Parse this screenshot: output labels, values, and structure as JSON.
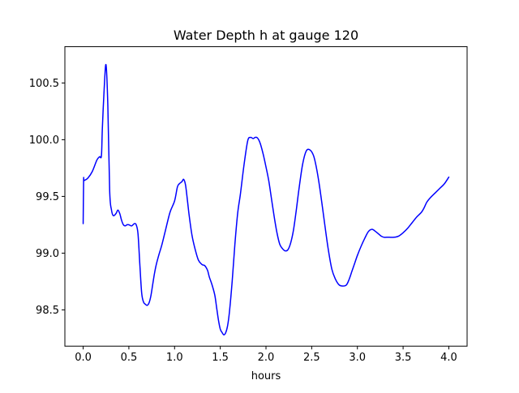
{
  "chart_data": {
    "type": "line",
    "title": "Water Depth h at gauge 120",
    "xlabel": "hours",
    "ylabel": "",
    "xlim": [
      -0.2,
      4.2
    ],
    "ylim": [
      98.18,
      100.82
    ],
    "xticks": [
      0.0,
      0.5,
      1.0,
      1.5,
      2.0,
      2.5,
      3.0,
      3.5,
      4.0
    ],
    "xtick_labels": [
      "0.0",
      "0.5",
      "1.0",
      "1.5",
      "2.0",
      "2.5",
      "3.0",
      "3.5",
      "4.0"
    ],
    "yticks": [
      98.5,
      99.0,
      99.5,
      100.0,
      100.5
    ],
    "ytick_labels": [
      "98.5",
      "99.0",
      "99.5",
      "100.0",
      "100.5"
    ],
    "grid": false,
    "legend": "none",
    "series": [
      {
        "color": "#0000ff",
        "x": [
          0.0,
          0.005,
          0.01,
          0.05,
          0.1,
          0.15,
          0.18,
          0.2,
          0.21,
          0.23,
          0.25,
          0.27,
          0.29,
          0.31,
          0.33,
          0.36,
          0.38,
          0.4,
          0.42,
          0.44,
          0.46,
          0.48,
          0.5,
          0.53,
          0.56,
          0.58,
          0.6,
          0.62,
          0.64,
          0.66,
          0.68,
          0.7,
          0.72,
          0.74,
          0.76,
          0.78,
          0.8,
          0.83,
          0.86,
          0.9,
          0.95,
          1.0,
          1.03,
          1.05,
          1.08,
          1.1,
          1.12,
          1.14,
          1.16,
          1.19,
          1.22,
          1.26,
          1.3,
          1.33,
          1.36,
          1.38,
          1.41,
          1.44,
          1.46,
          1.48,
          1.5,
          1.52,
          1.54,
          1.56,
          1.58,
          1.6,
          1.63,
          1.66,
          1.69,
          1.72,
          1.76,
          1.8,
          1.83,
          1.86,
          1.88,
          1.9,
          1.92,
          1.94,
          1.97,
          2.0,
          2.03,
          2.06,
          2.09,
          2.12,
          2.15,
          2.18,
          2.21,
          2.24,
          2.27,
          2.3,
          2.33,
          2.36,
          2.4,
          2.44,
          2.48,
          2.52,
          2.55,
          2.58,
          2.61,
          2.64,
          2.68,
          2.72,
          2.76,
          2.8,
          2.84,
          2.88,
          2.91,
          2.94,
          2.97,
          3.0,
          3.04,
          3.08,
          3.12,
          3.16,
          3.2,
          3.23,
          3.26,
          3.29,
          3.32,
          3.35,
          3.4,
          3.45,
          3.5,
          3.55,
          3.6,
          3.65,
          3.7,
          3.73,
          3.76,
          3.8,
          3.85,
          3.9,
          3.95,
          4.0
        ],
        "values": [
          99.26,
          99.64,
          99.64,
          99.66,
          99.72,
          99.82,
          99.85,
          99.86,
          100.1,
          100.45,
          100.66,
          100.3,
          99.55,
          99.38,
          99.33,
          99.35,
          99.38,
          99.35,
          99.29,
          99.25,
          99.24,
          99.25,
          99.25,
          99.24,
          99.26,
          99.25,
          99.17,
          98.9,
          98.65,
          98.57,
          98.55,
          98.54,
          98.56,
          98.62,
          98.72,
          98.82,
          98.9,
          98.99,
          99.07,
          99.2,
          99.36,
          99.46,
          99.58,
          99.61,
          99.63,
          99.65,
          99.6,
          99.47,
          99.33,
          99.16,
          99.05,
          98.94,
          98.9,
          98.89,
          98.85,
          98.79,
          98.72,
          98.63,
          98.52,
          98.41,
          98.33,
          98.3,
          98.28,
          98.3,
          98.36,
          98.48,
          98.75,
          99.08,
          99.35,
          99.52,
          99.78,
          99.99,
          100.02,
          100.01,
          100.02,
          100.02,
          100.0,
          99.96,
          99.87,
          99.76,
          99.64,
          99.48,
          99.32,
          99.18,
          99.08,
          99.04,
          99.02,
          99.03,
          99.09,
          99.2,
          99.37,
          99.56,
          99.78,
          99.9,
          99.91,
          99.86,
          99.76,
          99.62,
          99.45,
          99.27,
          99.04,
          98.86,
          98.77,
          98.72,
          98.71,
          98.72,
          98.77,
          98.84,
          98.91,
          98.98,
          99.06,
          99.13,
          99.19,
          99.21,
          99.19,
          99.17,
          99.15,
          99.14,
          99.14,
          99.14,
          99.14,
          99.15,
          99.18,
          99.22,
          99.27,
          99.32,
          99.36,
          99.4,
          99.45,
          99.49,
          99.53,
          99.57,
          99.61,
          99.67
        ]
      }
    ]
  }
}
